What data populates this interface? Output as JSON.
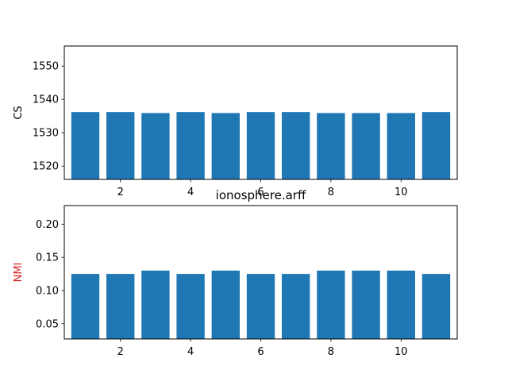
{
  "chart_data": [
    {
      "type": "bar",
      "title": "",
      "xlabel": "",
      "ylabel": "CS",
      "ylabel_color": "#000000",
      "bar_color": "#1f77b4",
      "x": [
        1,
        2,
        3,
        4,
        5,
        6,
        7,
        8,
        9,
        10,
        11
      ],
      "values": [
        1536.2,
        1536.2,
        1535.9,
        1536.2,
        1535.9,
        1536.2,
        1536.2,
        1535.9,
        1535.9,
        1535.9,
        1536.2
      ],
      "xlim": [
        0.4,
        11.6
      ],
      "ylim": [
        1516,
        1556
      ],
      "xticks": [
        2,
        4,
        6,
        8,
        10
      ],
      "xtick_labels": [
        "2",
        "4",
        "6",
        "8",
        "10"
      ],
      "yticks": [
        1520,
        1530,
        1540,
        1550
      ],
      "ytick_labels": [
        "1520",
        "1530",
        "1540",
        "1550"
      ],
      "grid": false
    },
    {
      "type": "bar",
      "title": "ionosphere.arff",
      "xlabel": "",
      "ylabel": "NMI",
      "ylabel_color": "#d62728",
      "bar_color": "#1f77b4",
      "x": [
        1,
        2,
        3,
        4,
        5,
        6,
        7,
        8,
        9,
        10,
        11
      ],
      "values": [
        0.125,
        0.125,
        0.13,
        0.125,
        0.13,
        0.125,
        0.125,
        0.13,
        0.13,
        0.13,
        0.125
      ],
      "xlim": [
        0.4,
        11.6
      ],
      "ylim": [
        0.027,
        0.228
      ],
      "xticks": [
        2,
        4,
        6,
        8,
        10
      ],
      "xtick_labels": [
        "2",
        "4",
        "6",
        "8",
        "10"
      ],
      "yticks": [
        0.05,
        0.1,
        0.15,
        0.2
      ],
      "ytick_labels": [
        "0.05",
        "0.10",
        "0.15",
        "0.20"
      ],
      "grid": false
    }
  ]
}
